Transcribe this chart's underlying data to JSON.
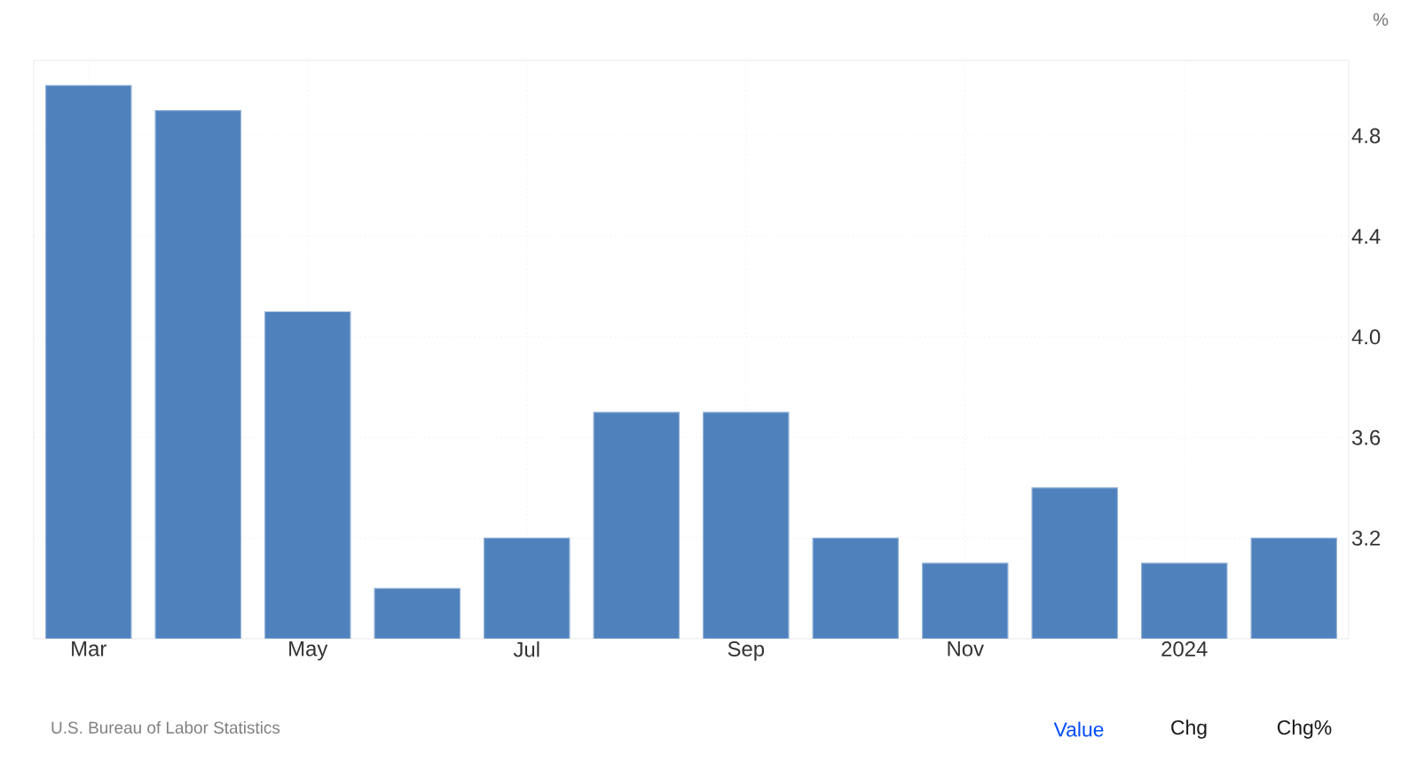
{
  "chart_data": {
    "type": "bar",
    "ylabel": "%",
    "categories": [
      "Mar",
      null,
      "May",
      null,
      "Jul",
      null,
      "Sep",
      null,
      "Nov",
      null,
      "2024",
      null
    ],
    "values": [
      5.0,
      4.9,
      4.1,
      3.0,
      3.2,
      3.7,
      3.7,
      3.2,
      3.1,
      3.4,
      3.1,
      3.2
    ],
    "color": "#4f81bd",
    "ylim": [
      2.8,
      5.1
    ],
    "yticks": [
      3.2,
      3.6,
      {
        "value": 4.0,
        "label": "4.0"
      },
      4.4,
      4.8
    ],
    "grid": true,
    "annotations": [
      "U.S. Bureau of Labor Statistics",
      "Value",
      "Chg",
      "Chg%"
    ]
  }
}
